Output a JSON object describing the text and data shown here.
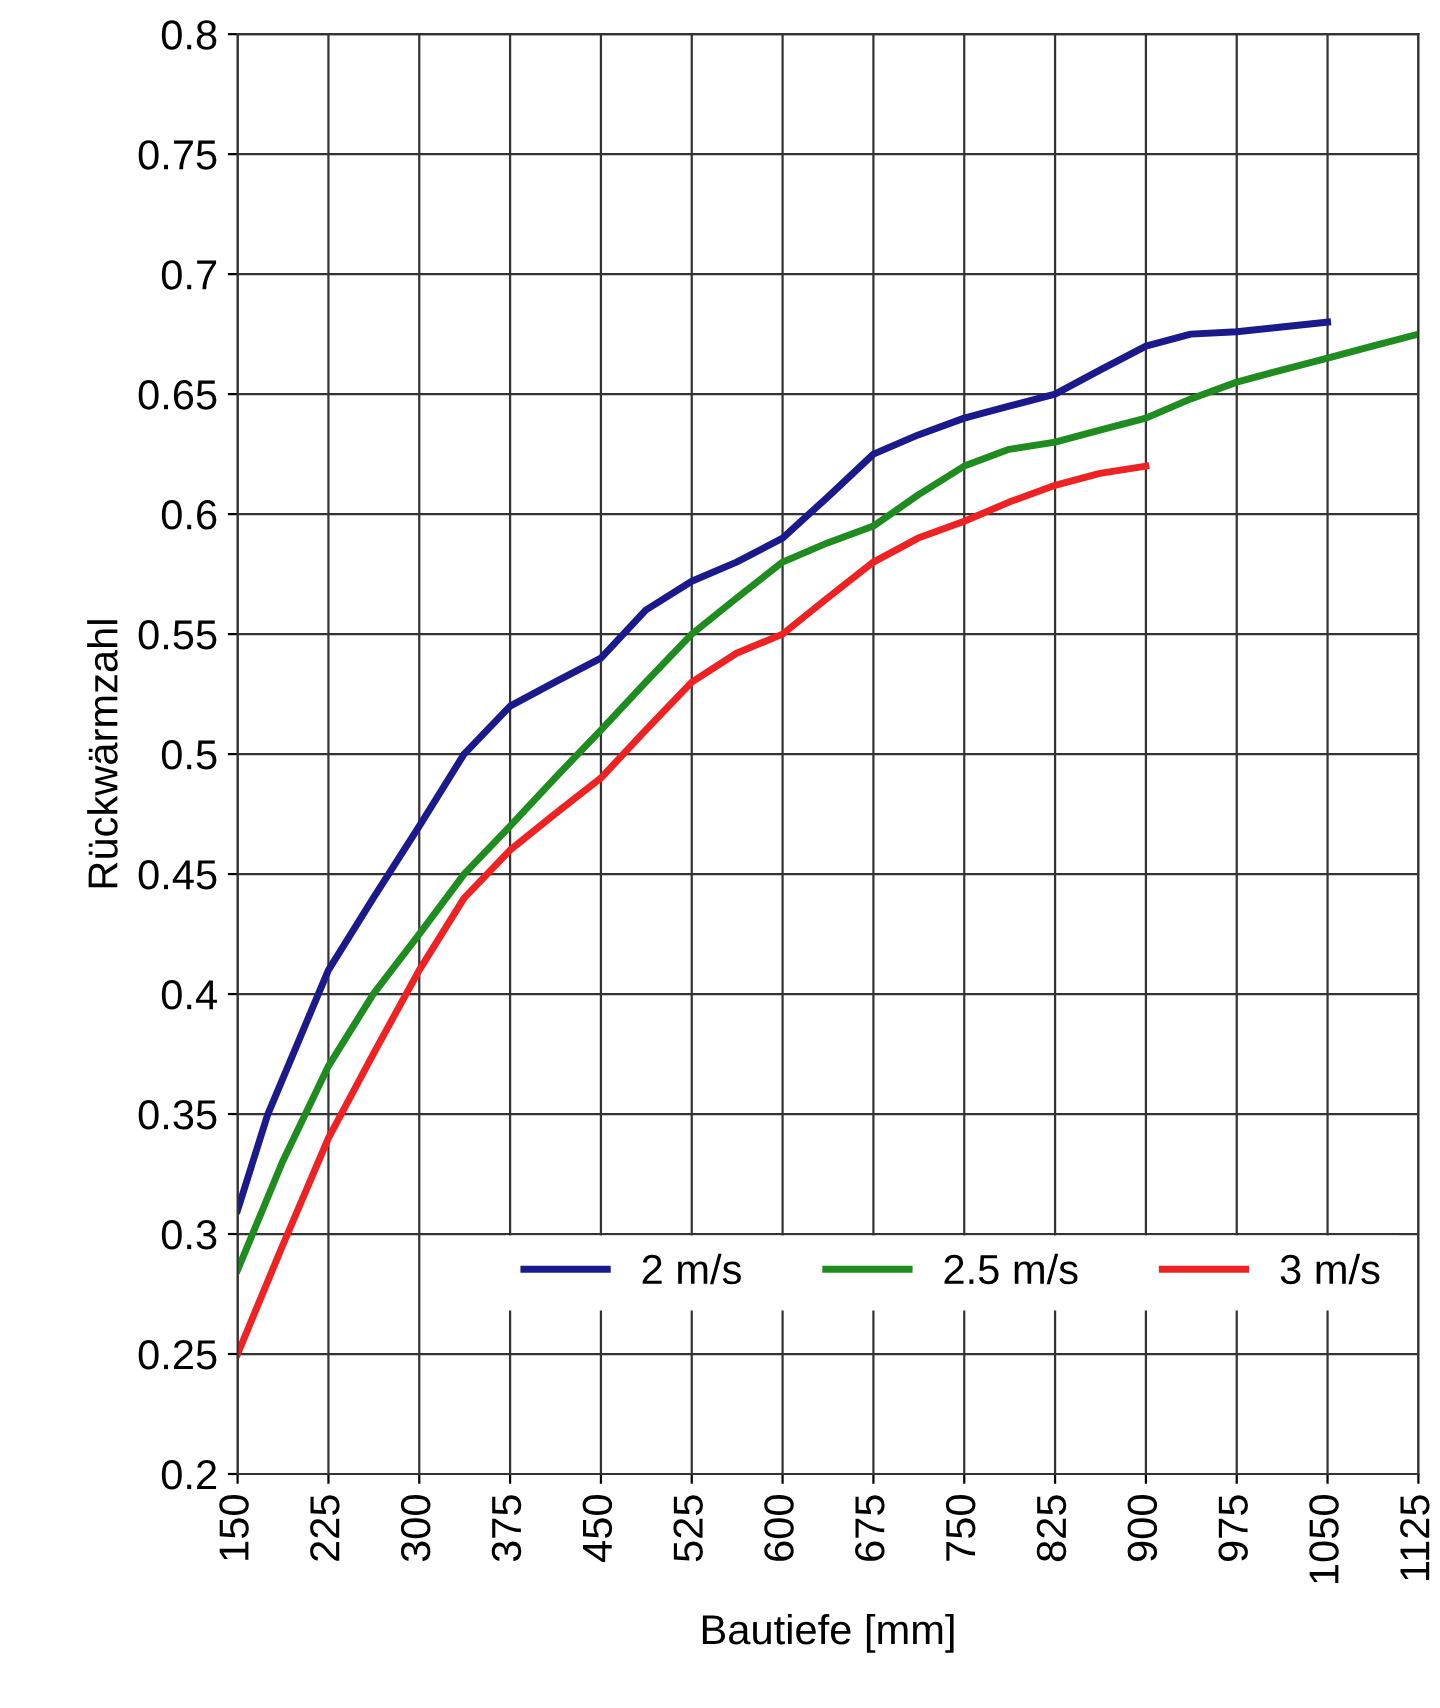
{
  "chart_data": {
    "type": "line",
    "xlabel": "Bautiefe [mm]",
    "ylabel": "Rückwärmzahl",
    "xlim": [
      150,
      1125
    ],
    "xticks": [
      150,
      225,
      300,
      375,
      450,
      525,
      600,
      675,
      750,
      825,
      900,
      975,
      1050,
      1125
    ],
    "ylim": [
      0.2,
      0.8
    ],
    "yticks": [
      0.2,
      0.25,
      0.3,
      0.35,
      0.4,
      0.45,
      0.5,
      0.55,
      0.6,
      0.65,
      0.7,
      0.75,
      0.8
    ],
    "grid": true,
    "legend": "bottom right",
    "marker": "none",
    "line_style": "solid",
    "series": [
      {
        "name": "2 m/s",
        "color": "#1a1a8c",
        "x": [
          150,
          175,
          200,
          225,
          262,
          300,
          337,
          375,
          412,
          450,
          487,
          525,
          562,
          600,
          637,
          675,
          712,
          750,
          787,
          825,
          862,
          900,
          937,
          975,
          1012,
          1050
        ],
        "values": [
          0.31,
          0.35,
          0.38,
          0.41,
          0.44,
          0.47,
          0.5,
          0.52,
          0.53,
          0.54,
          0.56,
          0.572,
          0.58,
          0.59,
          0.607,
          0.625,
          0.633,
          0.64,
          0.645,
          0.65,
          0.66,
          0.67,
          0.675,
          0.676,
          0.678,
          0.68
        ]
      },
      {
        "name": "2.5 m/s",
        "color": "#1e8c1e",
        "x": [
          150,
          187,
          225,
          262,
          300,
          337,
          375,
          412,
          450,
          487,
          525,
          562,
          600,
          637,
          675,
          712,
          750,
          787,
          825,
          862,
          900,
          937,
          975,
          1012,
          1050,
          1087,
          1125
        ],
        "values": [
          0.285,
          0.33,
          0.37,
          0.4,
          0.425,
          0.45,
          0.47,
          0.49,
          0.51,
          0.53,
          0.55,
          0.565,
          0.58,
          0.588,
          0.595,
          0.608,
          0.62,
          0.627,
          0.63,
          0.635,
          0.64,
          0.648,
          0.655,
          0.66,
          0.665,
          0.67,
          0.675
        ]
      },
      {
        "name": "3 m/s",
        "color": "#ee2222",
        "x": [
          150,
          187,
          225,
          262,
          300,
          337,
          375,
          412,
          450,
          487,
          525,
          562,
          600,
          637,
          675,
          712,
          750,
          787,
          825,
          862,
          900
        ],
        "values": [
          0.25,
          0.295,
          0.34,
          0.375,
          0.41,
          0.44,
          0.46,
          0.475,
          0.49,
          0.51,
          0.53,
          0.542,
          0.55,
          0.565,
          0.58,
          0.59,
          0.597,
          0.605,
          0.612,
          0.617,
          0.62
        ]
      }
    ]
  }
}
